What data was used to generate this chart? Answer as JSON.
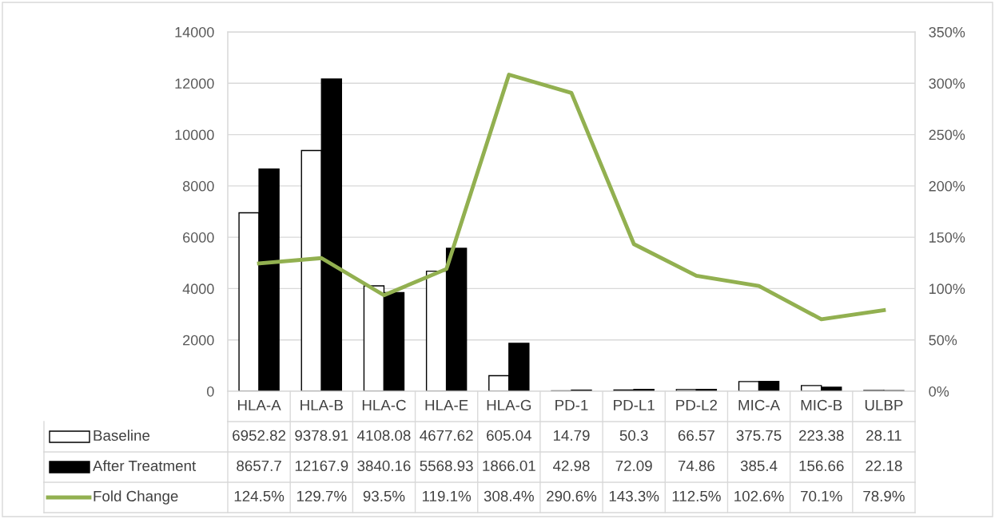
{
  "chart_data": {
    "type": "bar",
    "categories": [
      "HLA-A",
      "HLA-B",
      "HLA-C",
      "HLA-E",
      "HLA-G",
      "PD-1",
      "PD-L1",
      "PD-L2",
      "MIC-A",
      "MIC-B",
      "ULBP"
    ],
    "series": [
      {
        "name": "Baseline",
        "color": "#ffffff",
        "values": [
          6952.82,
          9378.91,
          4108.08,
          4677.62,
          605.04,
          14.79,
          50.3,
          66.57,
          375.75,
          223.38,
          28.11
        ],
        "value_labels": [
          "6952.82",
          "9378.91",
          "4108.08",
          "4677.62",
          "605.04",
          "14.79",
          "50.3",
          "66.57",
          "375.75",
          "223.38",
          "28.11"
        ]
      },
      {
        "name": "After Treatment",
        "color": "#000000",
        "values": [
          8657.7,
          12167.9,
          3840.16,
          5568.93,
          1866.01,
          42.98,
          72.09,
          74.86,
          385.4,
          156.66,
          22.18
        ],
        "value_labels": [
          "8657.7",
          "12167.9",
          "3840.16",
          "5568.93",
          "1866.01",
          "42.98",
          "72.09",
          "74.86",
          "385.4",
          "156.66",
          "22.18"
        ]
      },
      {
        "name": "Fold Change",
        "type": "line",
        "axis": "y2",
        "color": "#92b050",
        "values": [
          124.5,
          129.7,
          93.5,
          119.1,
          308.4,
          290.6,
          143.3,
          112.5,
          102.6,
          70.1,
          78.9
        ],
        "value_labels": [
          "124.5%",
          "129.7%",
          "93.5%",
          "119.1%",
          "308.4%",
          "290.6%",
          "143.3%",
          "112.5%",
          "102.6%",
          "70.1%",
          "78.9%"
        ]
      }
    ],
    "ylim": [
      0,
      14000
    ],
    "yticks": [
      0,
      2000,
      4000,
      6000,
      8000,
      10000,
      12000,
      14000
    ],
    "y2lim": [
      0,
      350
    ],
    "y2ticks": [
      {
        "value": 0,
        "label": "0%"
      },
      {
        "value": 50,
        "label": "50%"
      },
      {
        "value": 100,
        "label": "100%"
      },
      {
        "value": 150,
        "label": "150%"
      },
      {
        "value": 200,
        "label": "200%"
      },
      {
        "value": 250,
        "label": "250%"
      },
      {
        "value": 300,
        "label": "300%"
      },
      {
        "value": 350,
        "label": "350%"
      }
    ],
    "grid": "y",
    "legend": "bottom",
    "marker": "none",
    "line_style": "solid"
  }
}
